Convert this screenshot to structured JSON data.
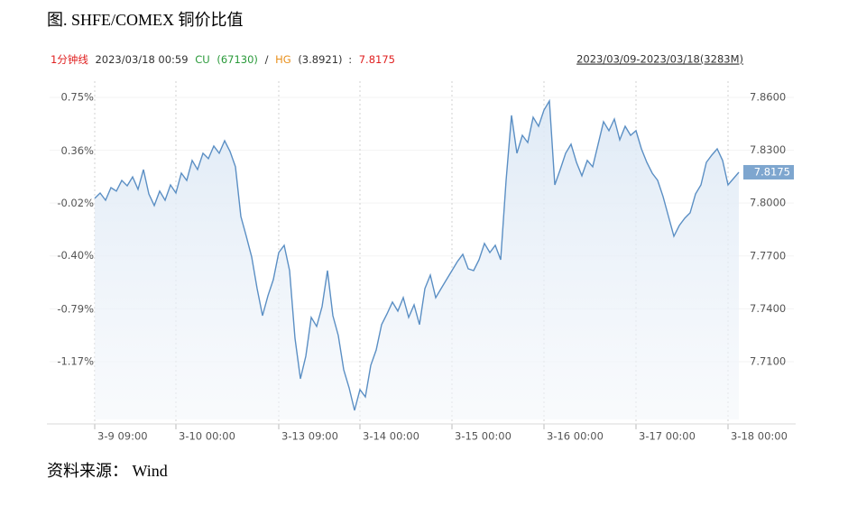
{
  "chart_data": {
    "type": "line",
    "title": "图. SHFE/COMEX 铜价比值",
    "info": {
      "period": "1分钟线",
      "time": "2023/03/18 00:59",
      "cu": "CU",
      "cu_value": "(67130)",
      "sep": "/",
      "hg": "HG",
      "hg_value": "(3.8921)",
      "colon": ":",
      "ratio": "7.8175"
    },
    "range_label": "2023/03/09-2023/03/18(3283M)",
    "source": "资料来源： Wind",
    "xlim": [
      0,
      119
    ],
    "xticks": [
      {
        "value": 0,
        "label": "3-9 09:00"
      },
      {
        "value": 15,
        "label": "3-10 00:00"
      },
      {
        "value": 34,
        "label": "3-13 09:00"
      },
      {
        "value": 49,
        "label": "3-14 00:00"
      },
      {
        "value": 66,
        "label": "3-15 00:00"
      },
      {
        "value": 83,
        "label": "3-16 00:00"
      },
      {
        "value": 100,
        "label": "3-17 00:00"
      },
      {
        "value": 117,
        "label": "3-18 00:00"
      }
    ],
    "ylim": [
      -1.589,
      0.868
    ],
    "yticks": [
      {
        "value": 0.75,
        "label": "0.75%"
      },
      {
        "value": 0.36,
        "label": "0.36%"
      },
      {
        "value": -0.02,
        "label": "-0.02%"
      },
      {
        "value": -0.4,
        "label": "-0.40%"
      },
      {
        "value": -0.79,
        "label": "-0.79%"
      },
      {
        "value": -1.17,
        "label": "-1.17%"
      }
    ],
    "y2lim": [
      7.6772,
      7.8692
    ],
    "y2ticks": [
      {
        "value": 7.86,
        "label": "7.8600"
      },
      {
        "value": 7.83,
        "label": "7.8300"
      },
      {
        "value": 7.8,
        "label": "7.8000"
      },
      {
        "value": 7.77,
        "label": "7.7700"
      },
      {
        "value": 7.74,
        "label": "7.7400"
      },
      {
        "value": 7.71,
        "label": "7.7100"
      }
    ],
    "grid": true,
    "series": [
      {
        "axis": "y2",
        "color": "#5b8fc4",
        "values": [
          7.8027,
          7.8057,
          7.8016,
          7.8088,
          7.8068,
          7.8129,
          7.8098,
          7.8149,
          7.8078,
          7.819,
          7.8052,
          7.7986,
          7.8068,
          7.8016,
          7.8103,
          7.8057,
          7.817,
          7.8129,
          7.8242,
          7.819,
          7.8283,
          7.8252,
          7.8324,
          7.8283,
          7.8354,
          7.8293,
          7.8206,
          7.7924,
          7.7812,
          7.7694,
          7.7515,
          7.7361,
          7.7474,
          7.7566,
          7.7719,
          7.776,
          7.7617,
          7.7233,
          7.7003,
          7.7131,
          7.7351,
          7.73,
          7.7412,
          7.7617,
          7.7361,
          7.7248,
          7.7054,
          7.6951,
          7.6823,
          7.6941,
          7.69,
          7.7079,
          7.7166,
          7.731,
          7.7371,
          7.7438,
          7.7387,
          7.7463,
          7.7351,
          7.7422,
          7.731,
          7.7515,
          7.7591,
          7.7463,
          7.7515,
          7.7566,
          7.7617,
          7.7668,
          7.7709,
          7.7627,
          7.7617,
          7.7678,
          7.7771,
          7.7719,
          7.776,
          7.7678,
          7.8129,
          7.8498,
          7.8283,
          7.8385,
          7.8344,
          7.8487,
          7.8436,
          7.8528,
          7.858,
          7.8103,
          7.819,
          7.8283,
          7.8334,
          7.8231,
          7.8155,
          7.8242,
          7.8206,
          7.8334,
          7.8462,
          7.8411,
          7.8477,
          7.8359,
          7.8436,
          7.8385,
          7.8411,
          7.8308,
          7.8231,
          7.817,
          7.8129,
          7.8037,
          7.7924,
          7.7812,
          7.7873,
          7.7914,
          7.7945,
          7.8052,
          7.8103,
          7.8231,
          7.8272,
          7.8308,
          7.8242,
          7.8103,
          7.8139,
          7.8175
        ]
      }
    ]
  }
}
